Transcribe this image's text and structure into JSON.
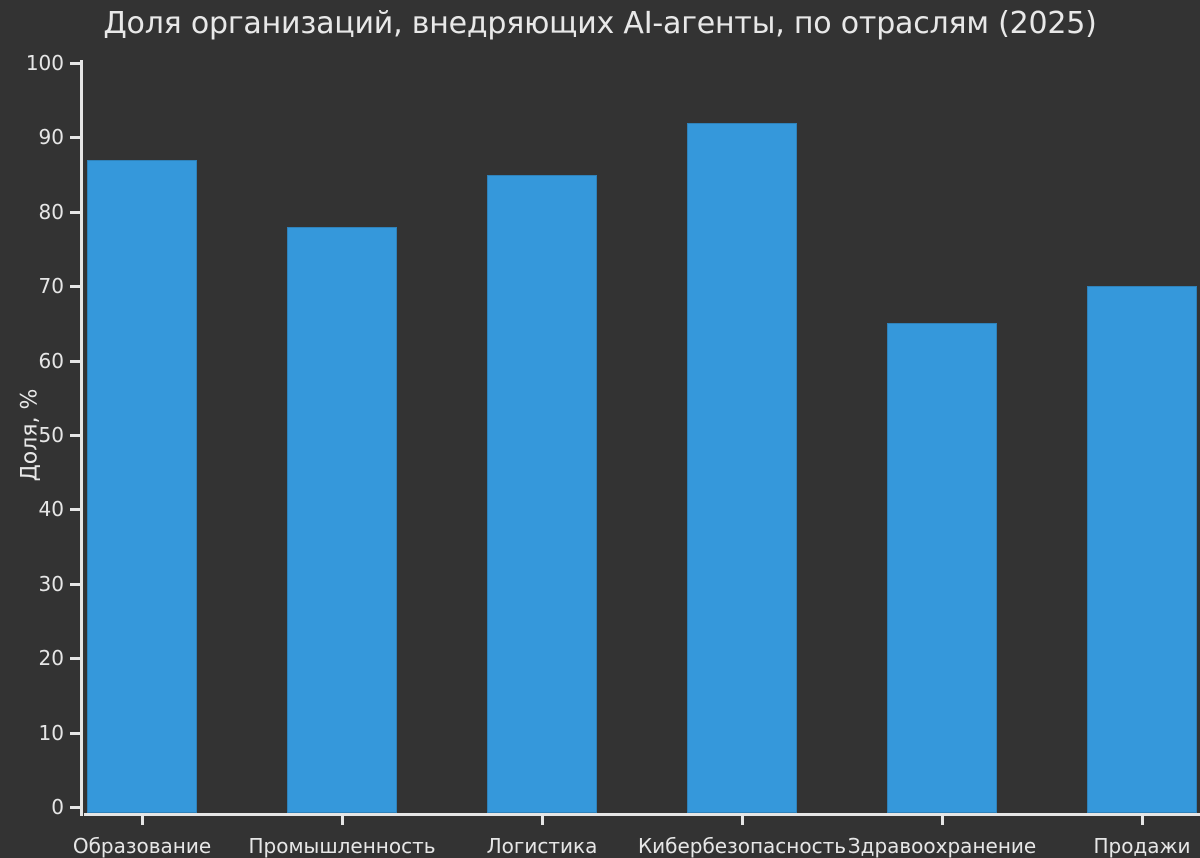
{
  "chart_data": {
    "type": "bar",
    "title": "Доля организаций, внедряющих AI-агенты, по отраслям (2025)",
    "xlabel": "",
    "ylabel": "Доля, %",
    "categories": [
      "Образование",
      "Промышленность",
      "Логистика",
      "Кибербезопасность",
      "Здравоохранение",
      "Продажи"
    ],
    "values": [
      87,
      78,
      85,
      92,
      65,
      70
    ],
    "ylim": [
      0,
      100
    ],
    "yticks": [
      0,
      10,
      20,
      30,
      40,
      50,
      60,
      70,
      80,
      90,
      100
    ],
    "grid": false,
    "legend": null,
    "colors": {
      "background": "#333333",
      "bar": "#3598db",
      "axis": "#e6e6e6",
      "text": "#e6e6e6"
    }
  }
}
